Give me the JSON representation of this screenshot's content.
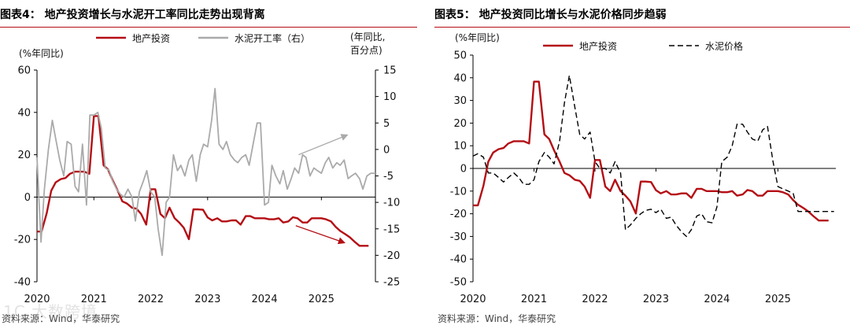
{
  "figures": {
    "left": {
      "title": "图表4：  地产投资增长与水泥开工率同比走势出现背离",
      "source": "资料来源：Wind，华泰研究"
    },
    "right": {
      "title": "图表5：  地产投资同比增长与水泥价格同步趋弱",
      "source": "资料来源：Wind，华泰研究"
    }
  },
  "watermark": "1C 大数跨境",
  "colors": {
    "red": "#b40e14",
    "gray": "#aaaaaa",
    "black": "#000000",
    "rule": "#b40e14"
  },
  "chart_data": [
    {
      "type": "line",
      "title": "地产投资增长与水泥开工率同比走势出现背离",
      "ylabel": "(%年同比)",
      "y2label": [
        "(年同比,",
        "百分点)"
      ],
      "ylim": [
        -40,
        60
      ],
      "yticks": [
        -40,
        -20,
        0,
        20,
        40,
        60
      ],
      "y2lim": [
        -25,
        15
      ],
      "y2ticks": [
        -25,
        -20,
        -15,
        -10,
        -5,
        0,
        5,
        10,
        15
      ],
      "xlim": [
        2020.0,
        2025.95
      ],
      "xticks": [
        "2020",
        "2021",
        "2022",
        "2023",
        "2024",
        "2025"
      ],
      "series": [
        {
          "name": "地产投资",
          "axis": "left",
          "color": "#b40e14",
          "style": "solid",
          "x": [
            2020.0,
            2020.08,
            2020.17,
            2020.25,
            2020.33,
            2020.42,
            2020.5,
            2020.58,
            2020.67,
            2020.75,
            2020.83,
            2020.92,
            2021.0,
            2021.08,
            2021.17,
            2021.25,
            2021.33,
            2021.42,
            2021.5,
            2021.58,
            2021.67,
            2021.75,
            2021.83,
            2021.92,
            2022.0,
            2022.08,
            2022.17,
            2022.25,
            2022.33,
            2022.42,
            2022.5,
            2022.58,
            2022.67,
            2022.75,
            2022.83,
            2022.92,
            2023.0,
            2023.08,
            2023.17,
            2023.25,
            2023.33,
            2023.42,
            2023.5,
            2023.58,
            2023.67,
            2023.75,
            2023.83,
            2023.92,
            2024.0,
            2024.08,
            2024.17,
            2024.25,
            2024.33,
            2024.42,
            2024.5,
            2024.58,
            2024.67,
            2024.75,
            2024.83,
            2024.92,
            2025.0,
            2025.08,
            2025.17,
            2025.25,
            2025.33,
            2025.42,
            2025.5,
            2025.58,
            2025.67,
            2025.75,
            2025.83
          ],
          "values": [
            -16.3,
            -16.3,
            -7.7,
            3.0,
            7.0,
            8.5,
            9.0,
            11.0,
            12.0,
            12.0,
            12.0,
            11.0,
            38.3,
            38.3,
            15.0,
            13.0,
            8.0,
            3.0,
            -2.0,
            -3.0,
            -5.0,
            -5.5,
            -8.0,
            -13.0,
            3.7,
            3.7,
            -8.0,
            -10.0,
            -5.0,
            -10.0,
            -12.0,
            -14.5,
            -19.9,
            -5.8,
            -5.8,
            -6.0,
            -9.6,
            -11.0,
            -10.0,
            -11.5,
            -11.5,
            -11.0,
            -11.0,
            -13.0,
            -9.0,
            -9.0,
            -10.0,
            -10.0,
            -10.0,
            -10.5,
            -10.5,
            -10.0,
            -12.0,
            -11.5,
            -9.5,
            -10.0,
            -12.0,
            -12.0,
            -10.0,
            -10.0,
            -10.0,
            -10.5,
            -11.5,
            -14.0,
            -16.0,
            -17.5,
            -19.0,
            -21.0,
            -23.0,
            -23.0,
            -23.0
          ]
        },
        {
          "name": "水泥开工率（右）",
          "axis": "right",
          "color": "#aaaaaa",
          "style": "solid",
          "x": [
            2020.0,
            2020.07,
            2020.13,
            2020.2,
            2020.27,
            2020.33,
            2020.4,
            2020.47,
            2020.53,
            2020.6,
            2020.67,
            2020.73,
            2020.8,
            2020.87,
            2020.93,
            2021.0,
            2021.07,
            2021.13,
            2021.2,
            2021.27,
            2021.33,
            2021.4,
            2021.47,
            2021.53,
            2021.6,
            2021.67,
            2021.73,
            2021.8,
            2021.87,
            2021.93,
            2022.0,
            2022.07,
            2022.13,
            2022.2,
            2022.27,
            2022.33,
            2022.4,
            2022.47,
            2022.53,
            2022.6,
            2022.67,
            2022.73,
            2022.8,
            2022.87,
            2022.93,
            2023.0,
            2023.07,
            2023.13,
            2023.2,
            2023.27,
            2023.33,
            2023.4,
            2023.47,
            2023.53,
            2023.6,
            2023.67,
            2023.73,
            2023.8,
            2023.87,
            2023.93,
            2024.0,
            2024.07,
            2024.13,
            2024.2,
            2024.27,
            2024.33,
            2024.4,
            2024.47,
            2024.53,
            2024.6,
            2024.67,
            2024.73,
            2024.8,
            2024.87,
            2024.93,
            2025.0,
            2025.07,
            2025.13,
            2025.2,
            2025.27,
            2025.33,
            2025.4,
            2025.47,
            2025.53,
            2025.6,
            2025.67,
            2025.73,
            2025.8,
            2025.87,
            2025.95
          ],
          "values": [
            -1.5,
            -17.5,
            -7.5,
            0,
            5.5,
            2.0,
            -2.0,
            -5.0,
            1.5,
            1.0,
            -7.0,
            -8.0,
            1.0,
            -10.5,
            6.5,
            6.5,
            7.0,
            4.0,
            -3.5,
            -4.0,
            -6.0,
            -7.5,
            -8.5,
            -9.0,
            -7.5,
            -9.0,
            -13.5,
            -8.0,
            -6.0,
            -4.0,
            -8.0,
            -9.0,
            -15.0,
            -20.0,
            -10.0,
            -9.0,
            -1.0,
            -4.0,
            -3.0,
            -5.0,
            -2.0,
            -1.0,
            -6.0,
            -1.0,
            1.0,
            0.5,
            5.5,
            11.5,
            1.0,
            0,
            1.5,
            -1.0,
            -2.0,
            -2.5,
            -1.5,
            -1.0,
            -3.0,
            1.0,
            5.0,
            5.0,
            -10.5,
            -10.0,
            -3.0,
            -5.0,
            -6.5,
            -4.0,
            -7.5,
            -5.5,
            -3.5,
            -4.5,
            -1.0,
            -1.5,
            -5.0,
            -3.5,
            -4.0,
            -4.5,
            -2.5,
            -1.5,
            -3.5,
            -2.5,
            -3.0,
            -2.0,
            -5.5,
            -5.0,
            -4.5,
            -5.5,
            -7.5,
            -5.0,
            -4.5,
            -4.5
          ]
        }
      ],
      "annotations": [
        {
          "type": "arrow",
          "color": "#aaaaaa",
          "axis": "right",
          "from": [
            2024.6,
            -1.0
          ],
          "to": [
            2025.45,
            2.7
          ]
        },
        {
          "type": "arrow",
          "color": "#b40e14",
          "axis": "left",
          "from": [
            2024.55,
            -13.5
          ],
          "to": [
            2025.4,
            -21.5
          ]
        }
      ]
    },
    {
      "type": "line",
      "title": "地产投资同比增长与水泥价格同步趋弱",
      "ylabel": "(%年同比)",
      "ylim": [
        -50,
        50
      ],
      "yticks": [
        -50,
        -40,
        -30,
        -20,
        -10,
        0,
        10,
        20,
        30,
        40,
        50
      ],
      "xlim": [
        2020.0,
        2025.95
      ],
      "xticks": [
        "2020",
        "2021",
        "2022",
        "2023",
        "2024",
        "2025"
      ],
      "series": [
        {
          "name": "地产投资",
          "axis": "left",
          "color": "#b40e14",
          "style": "solid",
          "x": [
            2020.0,
            2020.08,
            2020.17,
            2020.25,
            2020.33,
            2020.42,
            2020.5,
            2020.58,
            2020.67,
            2020.75,
            2020.83,
            2020.92,
            2021.0,
            2021.08,
            2021.17,
            2021.25,
            2021.33,
            2021.42,
            2021.5,
            2021.58,
            2021.67,
            2021.75,
            2021.83,
            2021.92,
            2022.0,
            2022.08,
            2022.17,
            2022.25,
            2022.33,
            2022.42,
            2022.5,
            2022.58,
            2022.67,
            2022.75,
            2022.83,
            2022.92,
            2023.0,
            2023.08,
            2023.17,
            2023.25,
            2023.33,
            2023.42,
            2023.5,
            2023.58,
            2023.67,
            2023.75,
            2023.83,
            2023.92,
            2024.0,
            2024.08,
            2024.17,
            2024.25,
            2024.33,
            2024.42,
            2024.5,
            2024.58,
            2024.67,
            2024.75,
            2024.83,
            2024.92,
            2025.0,
            2025.08,
            2025.17,
            2025.25,
            2025.33,
            2025.42,
            2025.5,
            2025.58,
            2025.67,
            2025.75,
            2025.83
          ],
          "values": [
            -16.3,
            -16.3,
            -7.7,
            3.0,
            7.0,
            8.5,
            9.0,
            11.0,
            12.0,
            12.0,
            12.0,
            11.0,
            38.3,
            38.3,
            15.0,
            13.0,
            8.0,
            3.0,
            -2.0,
            -3.0,
            -5.0,
            -5.5,
            -8.0,
            -13.0,
            3.7,
            3.7,
            -8.0,
            -10.0,
            -5.0,
            -10.0,
            -12.0,
            -14.5,
            -19.9,
            -5.8,
            -5.8,
            -6.0,
            -9.6,
            -11.0,
            -10.0,
            -11.5,
            -11.5,
            -11.0,
            -11.0,
            -13.0,
            -9.0,
            -9.0,
            -10.0,
            -10.0,
            -10.0,
            -10.5,
            -10.5,
            -10.0,
            -12.0,
            -11.5,
            -9.5,
            -10.0,
            -12.0,
            -12.0,
            -10.0,
            -10.0,
            -10.0,
            -10.5,
            -11.5,
            -14.0,
            -16.0,
            -17.5,
            -19.0,
            -21.0,
            -23.0,
            -23.0,
            -23.0
          ]
        },
        {
          "name": "水泥价格",
          "axis": "left",
          "color": "#000000",
          "style": "dashed",
          "x": [
            2020.0,
            2020.08,
            2020.17,
            2020.25,
            2020.33,
            2020.42,
            2020.5,
            2020.58,
            2020.67,
            2020.75,
            2020.83,
            2020.92,
            2021.0,
            2021.08,
            2021.17,
            2021.25,
            2021.33,
            2021.42,
            2021.5,
            2021.58,
            2021.67,
            2021.75,
            2021.83,
            2021.92,
            2022.0,
            2022.08,
            2022.17,
            2022.25,
            2022.33,
            2022.42,
            2022.5,
            2022.58,
            2022.67,
            2022.75,
            2022.83,
            2022.92,
            2023.0,
            2023.08,
            2023.17,
            2023.25,
            2023.33,
            2023.42,
            2023.5,
            2023.58,
            2023.67,
            2023.75,
            2023.83,
            2023.92,
            2024.0,
            2024.08,
            2024.17,
            2024.25,
            2024.33,
            2024.42,
            2024.5,
            2024.58,
            2024.67,
            2024.75,
            2024.83,
            2024.92,
            2025.0,
            2025.08,
            2025.17,
            2025.25,
            2025.33,
            2025.42,
            2025.5,
            2025.58,
            2025.67,
            2025.75,
            2025.83,
            2025.92
          ],
          "values": [
            5.5,
            6.5,
            5.0,
            -2.0,
            -2.0,
            -4.0,
            -6.0,
            -4.0,
            -2.0,
            -4.0,
            -7.0,
            -7.0,
            -5.0,
            3.0,
            7.0,
            5.0,
            2.0,
            12.0,
            29.0,
            41.0,
            27.0,
            15.0,
            13.0,
            16.0,
            3.0,
            0,
            0,
            -2.0,
            3.0,
            -2.0,
            -27.0,
            -25.0,
            -22.0,
            -20.0,
            -18.5,
            -18.0,
            -19.5,
            -18.0,
            -22.0,
            -21.5,
            -25.0,
            -28.0,
            -30.0,
            -27.0,
            -21.0,
            -20.0,
            -23.5,
            -24.0,
            -17.0,
            3.0,
            5.0,
            10.0,
            19.5,
            19.5,
            16.0,
            13.0,
            12.0,
            17.0,
            18.5,
            3.0,
            -8.0,
            -9.0,
            -10.0,
            -11.0,
            -19.0,
            -19.0,
            -19.0,
            -19.0,
            -19.0,
            -19.0,
            -19.0,
            -19.0
          ]
        }
      ]
    }
  ]
}
